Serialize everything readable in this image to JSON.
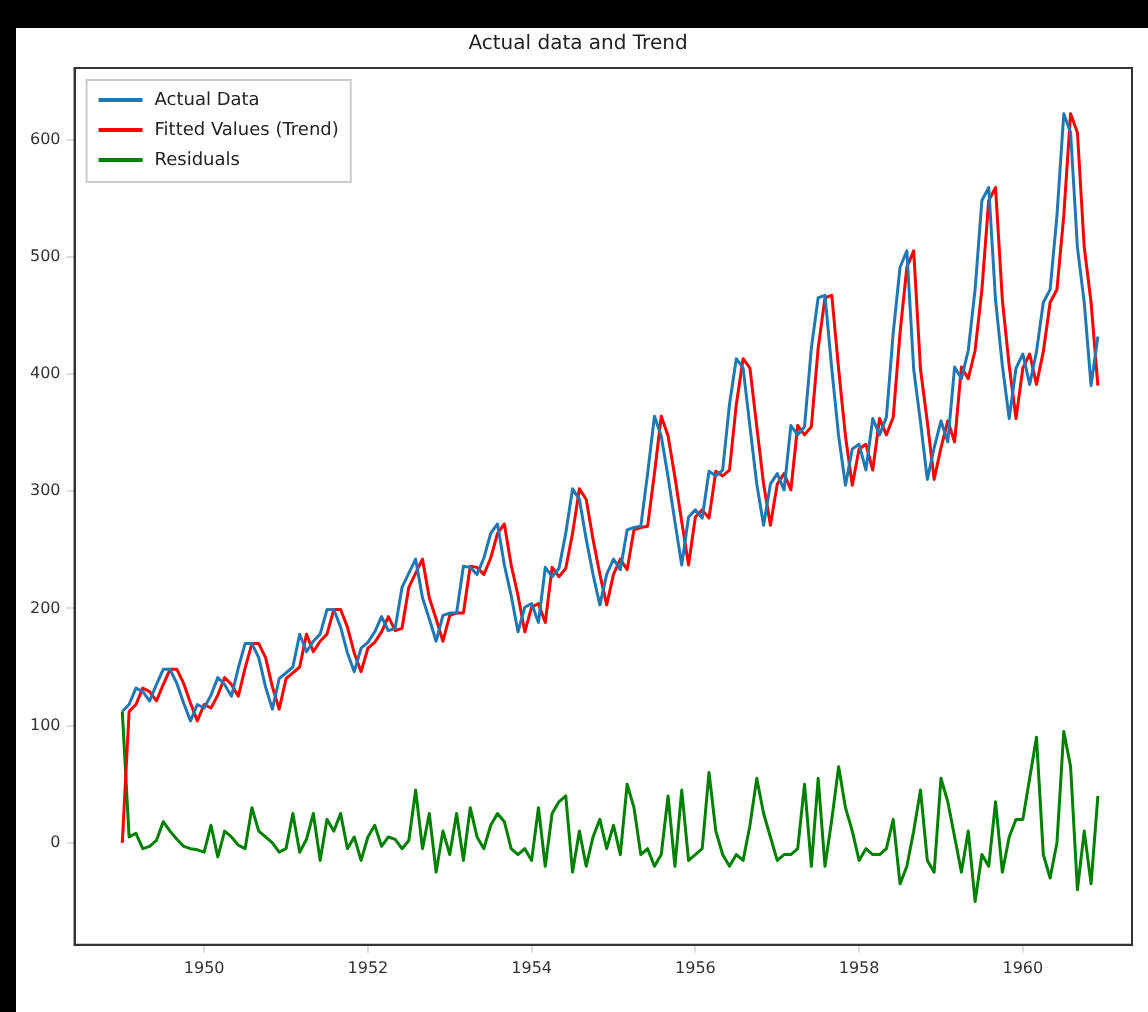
{
  "chart_data": {
    "type": "line",
    "title": "Actual data and Trend",
    "legend": "top left",
    "grid": false,
    "marker": "none",
    "line_style": "solid",
    "xlim": [
      "1948-06",
      "1961-05"
    ],
    "xticks": [
      "1950",
      "1952",
      "1954",
      "1956",
      "1958",
      "1960"
    ],
    "ylim": [
      -87,
      661
    ],
    "yticks": [
      0,
      100,
      200,
      300,
      400,
      500,
      600
    ],
    "x": [
      "1949-01",
      "1949-02",
      "1949-03",
      "1949-04",
      "1949-05",
      "1949-06",
      "1949-07",
      "1949-08",
      "1949-09",
      "1949-10",
      "1949-11",
      "1949-12",
      "1950-01",
      "1950-02",
      "1950-03",
      "1950-04",
      "1950-05",
      "1950-06",
      "1950-07",
      "1950-08",
      "1950-09",
      "1950-10",
      "1950-11",
      "1950-12",
      "1951-01",
      "1951-02",
      "1951-03",
      "1951-04",
      "1951-05",
      "1951-06",
      "1951-07",
      "1951-08",
      "1951-09",
      "1951-10",
      "1951-11",
      "1951-12",
      "1952-01",
      "1952-02",
      "1952-03",
      "1952-04",
      "1952-05",
      "1952-06",
      "1952-07",
      "1952-08",
      "1952-09",
      "1952-10",
      "1952-11",
      "1952-12",
      "1953-01",
      "1953-02",
      "1953-03",
      "1953-04",
      "1953-05",
      "1953-06",
      "1953-07",
      "1953-08",
      "1953-09",
      "1953-10",
      "1953-11",
      "1953-12",
      "1954-01",
      "1954-02",
      "1954-03",
      "1954-04",
      "1954-05",
      "1954-06",
      "1954-07",
      "1954-08",
      "1954-09",
      "1954-10",
      "1954-11",
      "1954-12",
      "1955-01",
      "1955-02",
      "1955-03",
      "1955-04",
      "1955-05",
      "1955-06",
      "1955-07",
      "1955-08",
      "1955-09",
      "1955-10",
      "1955-11",
      "1955-12",
      "1956-01",
      "1956-02",
      "1956-03",
      "1956-04",
      "1956-05",
      "1956-06",
      "1956-07",
      "1956-08",
      "1956-09",
      "1956-10",
      "1956-11",
      "1956-12",
      "1957-01",
      "1957-02",
      "1957-03",
      "1957-04",
      "1957-05",
      "1957-06",
      "1957-07",
      "1957-08",
      "1957-09",
      "1957-10",
      "1957-11",
      "1957-12",
      "1958-01",
      "1958-02",
      "1958-03",
      "1958-04",
      "1958-05",
      "1958-06",
      "1958-07",
      "1958-08",
      "1958-09",
      "1958-10",
      "1958-11",
      "1958-12",
      "1959-01",
      "1959-02",
      "1959-03",
      "1959-04",
      "1959-05",
      "1959-06",
      "1959-07",
      "1959-08",
      "1959-09",
      "1959-10",
      "1959-11",
      "1959-12",
      "1960-01",
      "1960-02",
      "1960-03",
      "1960-04",
      "1960-05",
      "1960-06",
      "1960-07",
      "1960-08",
      "1960-09",
      "1960-10",
      "1960-11",
      "1960-12"
    ],
    "series": [
      {
        "name": "Actual Data",
        "color": "#1f77b4",
        "values": [
          112,
          118,
          132,
          129,
          121,
          135,
          148,
          148,
          136,
          119,
          104,
          118,
          115,
          126,
          141,
          135,
          125,
          149,
          170,
          170,
          158,
          133,
          114,
          140,
          145,
          150,
          178,
          163,
          172,
          178,
          199,
          199,
          184,
          162,
          146,
          166,
          171,
          180,
          193,
          181,
          183,
          218,
          230,
          242,
          209,
          191,
          172,
          194,
          196,
          196,
          236,
          235,
          229,
          243,
          264,
          272,
          237,
          211,
          180,
          201,
          204,
          188,
          235,
          227,
          234,
          264,
          302,
          293,
          259,
          229,
          203,
          229,
          242,
          233,
          267,
          269,
          270,
          315,
          364,
          347,
          312,
          274,
          237,
          278,
          284,
          277,
          317,
          313,
          318,
          374,
          413,
          405,
          355,
          306,
          271,
          306,
          315,
          301,
          356,
          348,
          355,
          422,
          465,
          467,
          404,
          347,
          305,
          336,
          340,
          318,
          362,
          348,
          363,
          435,
          491,
          505,
          404,
          359,
          310,
          337,
          360,
          342,
          406,
          396,
          420,
          472,
          548,
          559,
          463,
          407,
          362,
          405,
          417,
          391,
          419,
          461,
          472,
          535,
          622,
          606,
          508,
          461,
          390,
          432
        ]
      },
      {
        "name": "Fitted Values (Trend)",
        "color": "#ff0000",
        "values": [
          0,
          112,
          118,
          132,
          129,
          121,
          135,
          148,
          148,
          136,
          119,
          104,
          118,
          115,
          126,
          141,
          135,
          125,
          149,
          170,
          170,
          158,
          133,
          114,
          140,
          145,
          150,
          178,
          163,
          172,
          178,
          199,
          199,
          184,
          162,
          146,
          166,
          171,
          180,
          193,
          181,
          183,
          218,
          230,
          242,
          209,
          191,
          172,
          194,
          196,
          196,
          236,
          235,
          229,
          243,
          264,
          272,
          237,
          211,
          180,
          201,
          204,
          188,
          235,
          227,
          234,
          264,
          302,
          293,
          259,
          229,
          203,
          229,
          242,
          233,
          267,
          269,
          270,
          315,
          364,
          347,
          312,
          274,
          237,
          278,
          284,
          277,
          317,
          313,
          318,
          374,
          413,
          405,
          355,
          306,
          271,
          306,
          315,
          301,
          356,
          348,
          355,
          422,
          465,
          467,
          404,
          347,
          305,
          336,
          340,
          318,
          362,
          348,
          363,
          435,
          491,
          505,
          404,
          359,
          310,
          337,
          360,
          342,
          406,
          396,
          420,
          472,
          548,
          559,
          463,
          407,
          362,
          405,
          417,
          391,
          419,
          461,
          472,
          535,
          622,
          606,
          508,
          461,
          390
        ]
      },
      {
        "name": "Residuals",
        "color": "#008000",
        "values": [
          112,
          5,
          8,
          -5,
          -3,
          2,
          18,
          10,
          3,
          -3,
          -5,
          -6,
          -8,
          15,
          -12,
          10,
          5,
          -2,
          -5,
          30,
          10,
          5,
          0,
          -8,
          -5,
          25,
          -8,
          3,
          25,
          -15,
          20,
          10,
          25,
          -5,
          5,
          -15,
          5,
          15,
          -3,
          5,
          3,
          -5,
          2,
          45,
          -5,
          25,
          -25,
          10,
          -10,
          25,
          -15,
          30,
          5,
          -5,
          15,
          25,
          18,
          -5,
          -10,
          -5,
          -15,
          30,
          -20,
          25,
          35,
          40,
          -25,
          10,
          -20,
          5,
          20,
          -5,
          15,
          -10,
          50,
          30,
          -10,
          -5,
          -20,
          -10,
          40,
          -20,
          45,
          -15,
          -10,
          -5,
          60,
          10,
          -10,
          -20,
          -10,
          -15,
          15,
          55,
          25,
          5,
          -15,
          -10,
          -10,
          -5,
          50,
          -20,
          55,
          -20,
          20,
          65,
          30,
          10,
          -15,
          -5,
          -10,
          -10,
          -5,
          20,
          -35,
          -20,
          10,
          45,
          -15,
          -25,
          55,
          35,
          5,
          -25,
          10,
          -50,
          -10,
          -20,
          35,
          -25,
          5,
          20,
          20,
          55,
          90,
          -10,
          -30,
          0,
          95,
          65,
          -40,
          10,
          -35,
          40
        ]
      }
    ]
  }
}
